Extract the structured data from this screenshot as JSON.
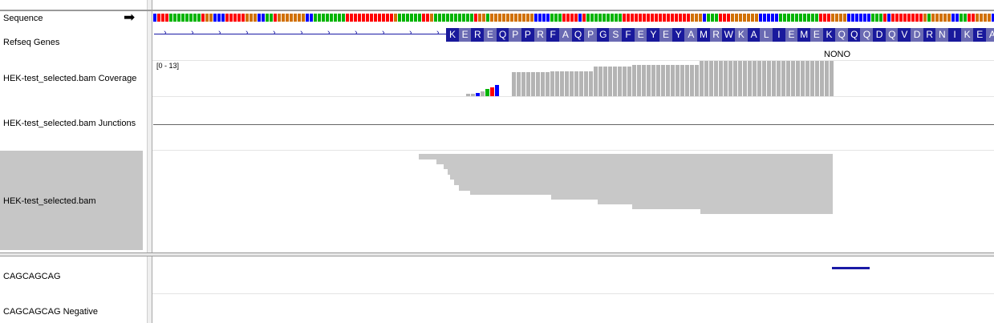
{
  "tracks": {
    "sequence": "Sequence",
    "refseq": "Refseq Genes",
    "coverage": "HEK-test_selected.bam Coverage",
    "junctions": "HEK-test_selected.bam Junctions",
    "bam": "HEK-test_selected.bam",
    "motif": "CAGCAGCAG",
    "motif_negative": "CAGCAGCAG Negative"
  },
  "strand_arrow": "➡",
  "gene_name": "NONO",
  "coverage_range": "[0 - 13]",
  "amino_acids": [
    "K",
    "E",
    "R",
    "E",
    "Q",
    "P",
    "P",
    "R",
    "F",
    "A",
    "Q",
    "P",
    "G",
    "S",
    "F",
    "E",
    "Y",
    "E",
    "Y",
    "A",
    "M",
    "R",
    "W",
    "K",
    "A",
    "L",
    "I",
    "E",
    "M",
    "E",
    "K",
    "Q",
    "Q",
    "Q",
    "D",
    "Q",
    "V",
    "D",
    "R",
    "N",
    "I",
    "K",
    "E",
    "A"
  ],
  "colors": {
    "A": "#00b400",
    "C": "#0000ff",
    "G": "#d17105",
    "T": "#ff0000",
    "aa_dark": "#19199c",
    "aa_light": "#6a6ab3",
    "gene_line": "#1a1aa6",
    "coverage": "#b4b4b4",
    "read": "#c8c8c8",
    "selected_track": "#c6c6c6",
    "motif_feature": "#1a1aa6"
  }
}
